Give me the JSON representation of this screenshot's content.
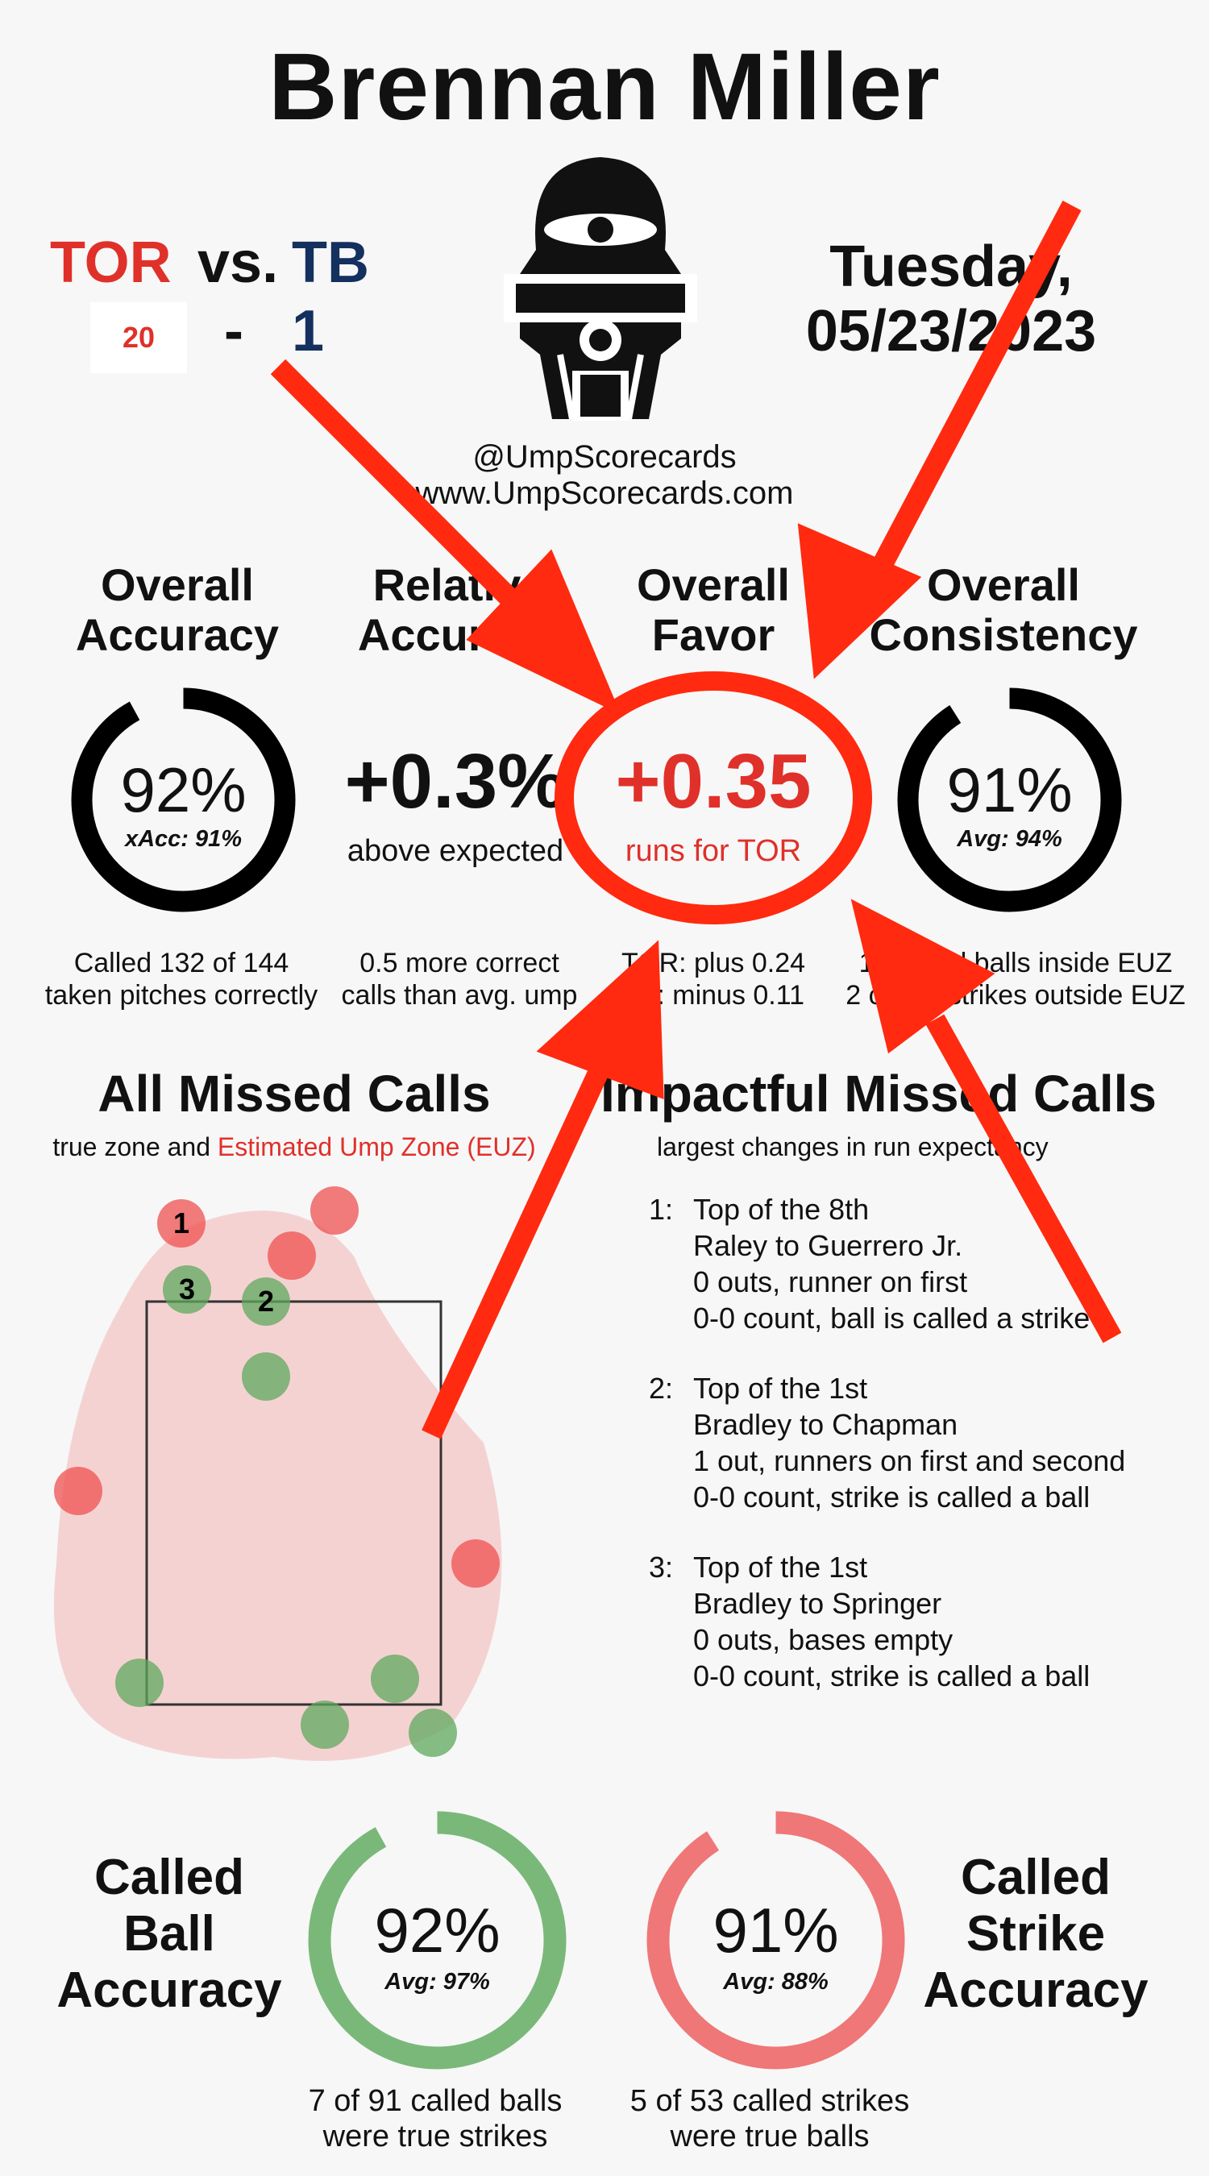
{
  "umpire_name": "Brennan Miller",
  "game": {
    "home_team": "TOR",
    "vs_label": "vs.",
    "away_team": "TB",
    "home_score": "20",
    "dash": "-",
    "away_score": "1",
    "day": "Tuesday,",
    "date": "05/23/2023"
  },
  "social": {
    "handle": "@UmpScorecards",
    "site": "www.UmpScorecards.com"
  },
  "stats": {
    "overall_accuracy": {
      "heading_line1": "Overall",
      "heading_line2": "Accuracy",
      "value": "92%",
      "sub": "xAcc: 91%",
      "note_line1": "Called 132 of 144",
      "note_line2": "taken pitches correctly",
      "fill": 0.92
    },
    "relative_accuracy": {
      "heading_line1": "Relative",
      "heading_line2": "Accuracy",
      "value": "+0.3%",
      "sub": "above expected",
      "note_line1": "0.5 more correct",
      "note_line2": "calls than avg. ump"
    },
    "overall_favor": {
      "heading_line1": "Overall",
      "heading_line2": "Favor",
      "value": "+0.35",
      "sub": "runs for TOR",
      "note_line1": "TOR: plus 0.24",
      "note_line2": "TB: minus 0.11"
    },
    "overall_consistency": {
      "heading_line1": "Overall",
      "heading_line2": "Consistency",
      "value": "91%",
      "sub": "Avg: 94%",
      "note_line1": "11 called balls inside EUZ",
      "note_line2": "2 called strikes outside EUZ",
      "fill": 0.91
    }
  },
  "all_missed": {
    "title": "All Missed Calls",
    "subtitle_a": "true zone and",
    "subtitle_b": "Estimated Ump Zone (EUZ)",
    "labels": [
      "1",
      "2",
      "3"
    ]
  },
  "impactful": {
    "title": "Impactful Missed Calls",
    "subtitle": "largest changes in run expectancy",
    "calls": [
      {
        "num": "1:",
        "inning": "Top of the 8th",
        "matchup": "Raley to Guerrero Jr.",
        "situation": "0 outs, runner on first",
        "call": "0-0 count, ball is called a strike"
      },
      {
        "num": "2:",
        "inning": "Top of the 1st",
        "matchup": "Bradley to Chapman",
        "situation": "1 out, runners on first and second",
        "call": "0-0 count, strike is called a ball"
      },
      {
        "num": "3:",
        "inning": "Top of the 1st",
        "matchup": "Bradley to Springer",
        "situation": "0 outs, bases empty",
        "call": "0-0 count, strike is called a ball"
      }
    ]
  },
  "called_ball": {
    "label_line1": "Called",
    "label_line2": "Ball",
    "label_line3": "Accuracy",
    "value": "92%",
    "sub": "Avg: 97%",
    "note_line1": "7 of 91 called balls",
    "note_line2": "were true strikes",
    "fill": 0.92
  },
  "called_strike": {
    "label_line1": "Called",
    "label_line2": "Strike",
    "label_line3": "Accuracy",
    "value": "91%",
    "sub": "Avg: 88%",
    "note_line1": "5 of 53 called strikes",
    "note_line2": "were true balls",
    "fill": 0.91
  },
  "colors": {
    "tor_red": "#e0302a",
    "tb_navy": "#13305e",
    "ball_green": "#7ab87a",
    "strike_red": "#ef7777",
    "arrow_red": "#ff2a0f"
  }
}
